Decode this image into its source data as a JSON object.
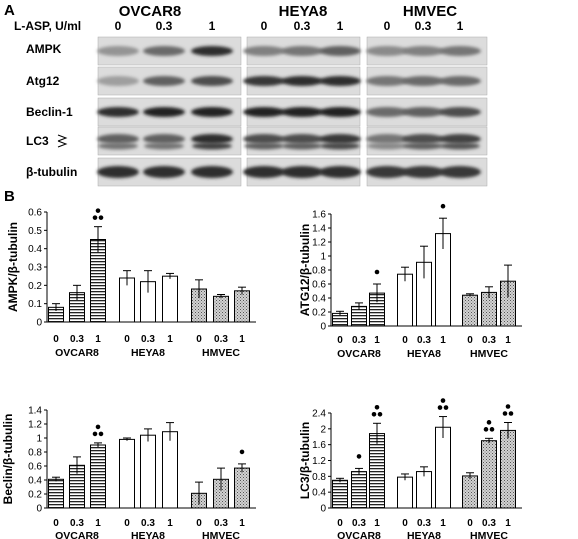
{
  "panel_a": {
    "label": "A",
    "dose_label": "L-ASP, U/ml",
    "doses": [
      "0",
      "0.3",
      "1"
    ],
    "cell_lines": [
      "OVCAR8",
      "HEYA8",
      "HMVEC"
    ],
    "proteins": [
      "AMPK",
      "Atg12",
      "Beclin-1",
      "LC3",
      "β-tubulin"
    ],
    "band_intensity": [
      [
        [
          0.35,
          0.55,
          0.85
        ],
        [
          0.45,
          0.5,
          0.6
        ],
        [
          0.4,
          0.45,
          0.5
        ]
      ],
      [
        [
          0.3,
          0.6,
          0.7
        ],
        [
          0.8,
          0.85,
          0.85
        ],
        [
          0.5,
          0.55,
          0.55
        ]
      ],
      [
        [
          0.85,
          0.9,
          0.9
        ],
        [
          0.9,
          0.9,
          0.9
        ],
        [
          0.55,
          0.6,
          0.7
        ]
      ],
      [
        [
          0.6,
          0.6,
          0.85
        ],
        [
          0.7,
          0.7,
          0.8
        ],
        [
          0.5,
          0.7,
          0.75
        ]
      ],
      [
        [
          0.85,
          0.85,
          0.85
        ],
        [
          0.85,
          0.85,
          0.85
        ],
        [
          0.8,
          0.8,
          0.8
        ]
      ]
    ]
  },
  "panel_b": {
    "label": "B",
    "chart_data": [
      {
        "type": "bar",
        "ylabel": "AMPK/β-tubulin",
        "ylim": [
          0,
          0.6
        ],
        "yticks": [
          "0",
          "0.1",
          "0.2",
          "0.3",
          "0.4",
          "0.5",
          "0.6"
        ],
        "groups": [
          "OVCAR8",
          "HEYA8",
          "HMVEC"
        ],
        "categories": [
          "0",
          "0.3",
          "1"
        ],
        "values": [
          [
            0.08,
            0.16,
            0.45
          ],
          [
            0.24,
            0.22,
            0.25
          ],
          [
            0.18,
            0.14,
            0.17
          ]
        ],
        "errors": [
          [
            0.02,
            0.04,
            0.07
          ],
          [
            0.04,
            0.06,
            0.015
          ],
          [
            0.05,
            0.01,
            0.02
          ]
        ],
        "dots": [
          [
            0,
            0,
            2
          ],
          [
            0,
            0,
            0
          ],
          [
            0,
            0,
            0
          ]
        ]
      },
      {
        "type": "bar",
        "ylabel": "ATG12/β-tubulin",
        "ylim": [
          0,
          1.6
        ],
        "yticks": [
          "0",
          "0.2",
          "0.4",
          "0.6",
          "0.8",
          "1",
          "1.2",
          "1.4",
          "1.6"
        ],
        "groups": [
          "OVCAR8",
          "HEYA8",
          "HMVEC"
        ],
        "categories": [
          "0",
          "0.3",
          "1"
        ],
        "values": [
          [
            0.18,
            0.28,
            0.47
          ],
          [
            0.74,
            0.91,
            1.32
          ],
          [
            0.44,
            0.48,
            0.64
          ]
        ],
        "errors": [
          [
            0.03,
            0.05,
            0.13
          ],
          [
            0.1,
            0.23,
            0.22
          ],
          [
            0.02,
            0.08,
            0.23
          ]
        ],
        "dots": [
          [
            0,
            0,
            1
          ],
          [
            0,
            0,
            1
          ],
          [
            0,
            0,
            0
          ]
        ]
      },
      {
        "type": "bar",
        "ylabel": "Beclin/β-tubulin",
        "ylim": [
          0,
          1.4
        ],
        "yticks": [
          "0",
          "0.2",
          "0.4",
          "0.6",
          "0.8",
          "1",
          "1.2",
          "1.4"
        ],
        "groups": [
          "OVCAR8",
          "HEYA8",
          "HMVEC"
        ],
        "categories": [
          "0",
          "0.3",
          "1"
        ],
        "values": [
          [
            0.41,
            0.61,
            0.9
          ],
          [
            0.98,
            1.04,
            1.09
          ],
          [
            0.21,
            0.41,
            0.57
          ]
        ],
        "errors": [
          [
            0.03,
            0.12,
            0.03
          ],
          [
            0.02,
            0.09,
            0.13
          ],
          [
            0.16,
            0.16,
            0.06
          ]
        ],
        "dots": [
          [
            0,
            0,
            2
          ],
          [
            0,
            0,
            0
          ],
          [
            0,
            0,
            1
          ]
        ]
      },
      {
        "type": "bar",
        "ylabel": "LC3/β-tubulin",
        "ylim": [
          0,
          2.4
        ],
        "yticks": [
          "0",
          "0.4",
          "0.8",
          "1.2",
          "1.6",
          "2",
          "2.4"
        ],
        "groups": [
          "OVCAR8",
          "HEYA8",
          "HMVEC"
        ],
        "categories": [
          "0",
          "0.3",
          "1"
        ],
        "values": [
          [
            0.7,
            0.92,
            1.88
          ],
          [
            0.78,
            0.92,
            2.04
          ],
          [
            0.81,
            1.7,
            1.96
          ]
        ],
        "errors": [
          [
            0.05,
            0.08,
            0.26
          ],
          [
            0.08,
            0.12,
            0.27
          ],
          [
            0.08,
            0.06,
            0.2
          ]
        ],
        "dots": [
          [
            0,
            1,
            2
          ],
          [
            0,
            0,
            2
          ],
          [
            0,
            2,
            2
          ]
        ]
      }
    ]
  }
}
